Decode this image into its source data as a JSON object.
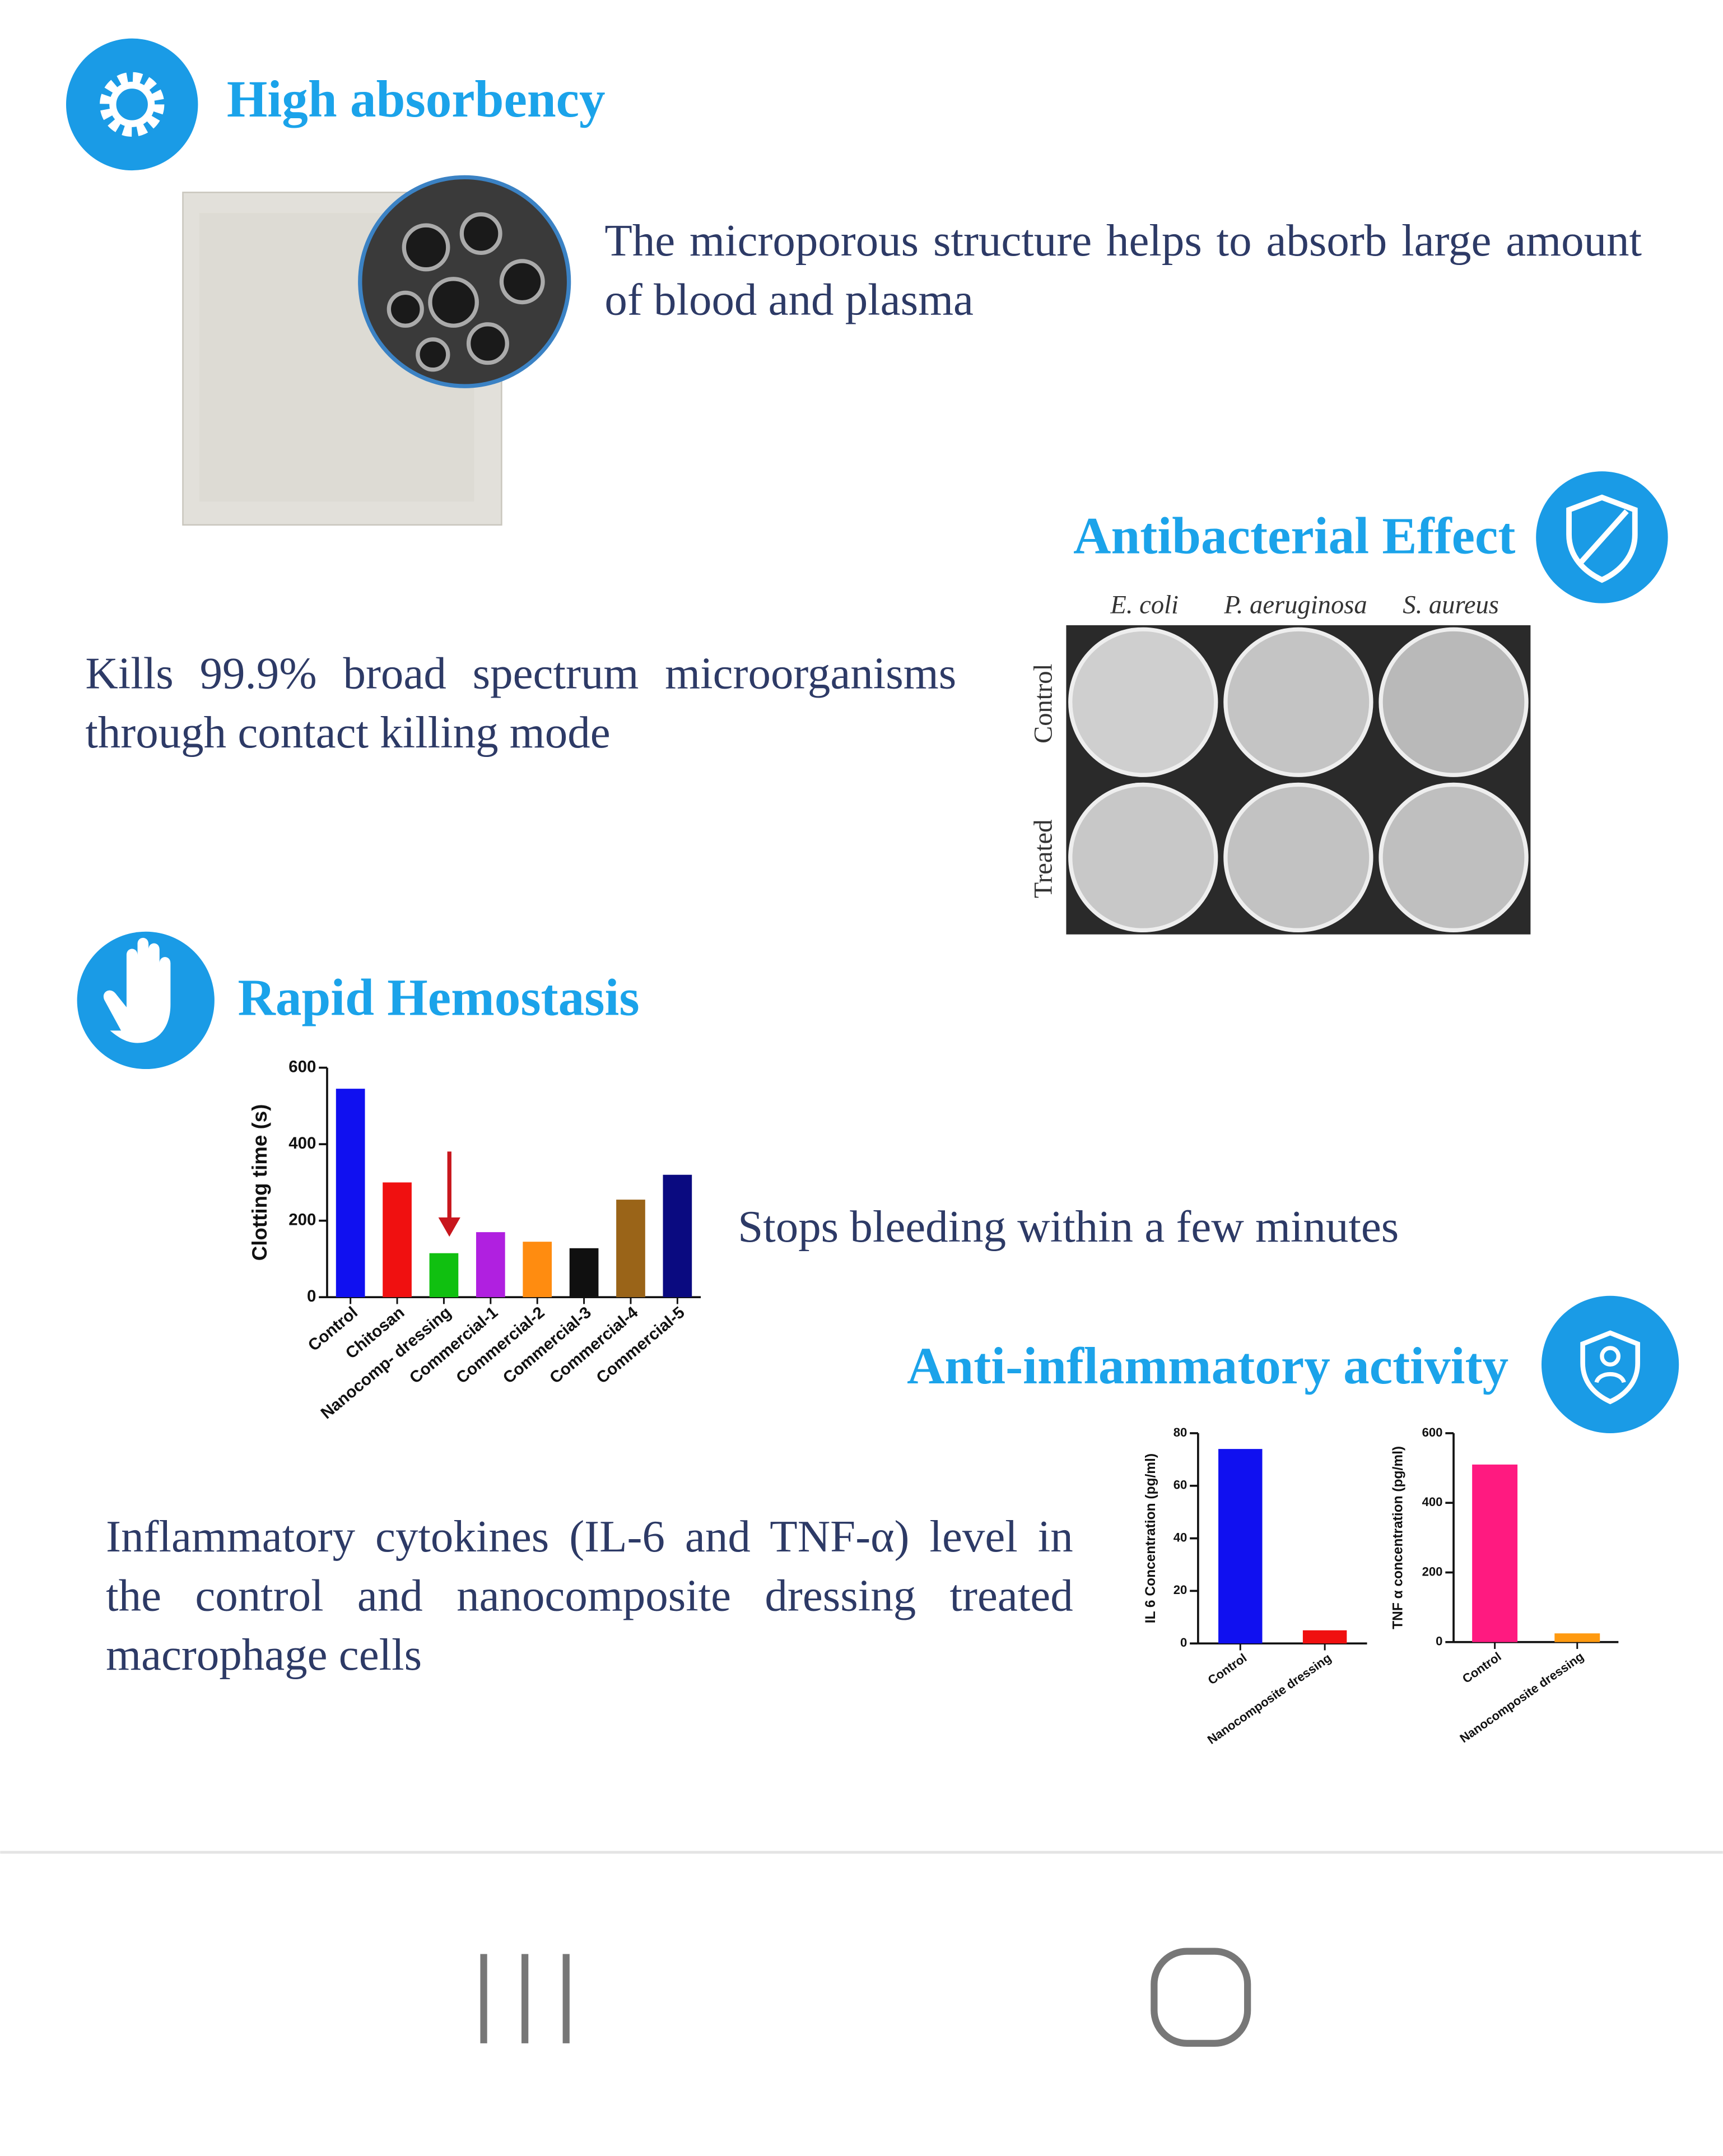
{
  "sections": [
    {
      "title": "High absorbency",
      "text": "The microporous structure helps to absorb large amount of blood and plasma"
    },
    {
      "title": "Antibacterial Effect",
      "text": "Kills 99.9% broad spectrum microorganisms through contact killing mode",
      "figure": {
        "columns": [
          "E. coli",
          "P. aeruginosa",
          "S. aureus"
        ],
        "rows": [
          "Control",
          "Treated"
        ]
      }
    },
    {
      "title": "Rapid Hemostasis",
      "text": "Stops bleeding within a few minutes"
    },
    {
      "title": "Anti-inflammatory activity",
      "text": "Inflammatory cytokines (IL-6 and TNF-α) level in the control and nanocomposite dressing treated macrophage cells"
    }
  ],
  "chart_data": [
    {
      "type": "bar",
      "ylabel": "Clotting time (s)",
      "categories": [
        "Control",
        "Chitosan",
        "Nanocomp- dressing",
        "Commercial-1",
        "Commercial-2",
        "Commercial-3",
        "Commercial-4",
        "Commercial-5"
      ],
      "values": [
        545,
        300,
        115,
        170,
        145,
        128,
        255,
        320
      ],
      "colors": [
        "#1010f0",
        "#f01010",
        "#10c010",
        "#b020e0",
        "#ff8c10",
        "#101010",
        "#9a6418",
        "#0a0a80"
      ],
      "ylim": [
        0,
        600
      ],
      "yticks": [
        0,
        200,
        400,
        600
      ]
    },
    {
      "type": "bar",
      "ylabel": "IL 6 Concentration (pg/ml)",
      "categories": [
        "Control",
        "Nanocomposite dressing"
      ],
      "values": [
        74,
        5
      ],
      "colors": [
        "#1010f0",
        "#f01010"
      ],
      "ylim": [
        0,
        80
      ],
      "yticks": [
        0,
        20,
        40,
        60,
        80
      ]
    },
    {
      "type": "bar",
      "ylabel": "TNF α concentration (pg/ml)",
      "categories": [
        "Control",
        "Nanocomposite dressing"
      ],
      "values": [
        510,
        25
      ],
      "colors": [
        "#ff1a80",
        "#ff9a10"
      ],
      "ylim": [
        0,
        600
      ],
      "yticks": [
        0,
        200,
        400,
        600
      ]
    }
  ]
}
